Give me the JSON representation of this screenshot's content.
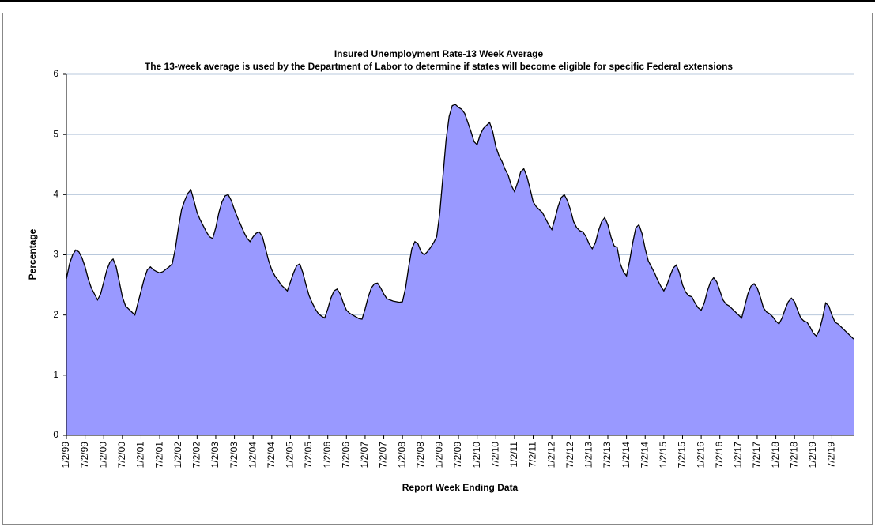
{
  "chart_data": {
    "type": "area",
    "title": "Insured Unemployment Rate-13 Week Average",
    "subtitle": "The 13-week average is used by the Department of Labor to determine if states will become eligible for specific Federal extensions",
    "x_label": "Report Week Ending Data",
    "y_label": "Percentage",
    "color": "#9999ff",
    "line_color": "#000000",
    "grid": true,
    "ylim": [
      0,
      6
    ],
    "yticks": [
      0,
      1,
      2,
      3,
      4,
      5,
      6
    ],
    "categories": [
      "1/2/99",
      null,
      null,
      null,
      null,
      null,
      "7/2/99",
      null,
      null,
      null,
      null,
      null,
      "1/2/00",
      null,
      null,
      null,
      null,
      null,
      "7/2/00",
      null,
      null,
      null,
      null,
      null,
      "1/2/01",
      null,
      null,
      null,
      null,
      null,
      "7/2/01",
      null,
      null,
      null,
      null,
      null,
      "1/2/02",
      null,
      null,
      null,
      null,
      null,
      "7/2/02",
      null,
      null,
      null,
      null,
      null,
      "1/2/03",
      null,
      null,
      null,
      null,
      null,
      "7/2/03",
      null,
      null,
      null,
      null,
      null,
      "1/2/04",
      null,
      null,
      null,
      null,
      null,
      "7/2/04",
      null,
      null,
      null,
      null,
      null,
      "1/2/05",
      null,
      null,
      null,
      null,
      null,
      "7/2/05",
      null,
      null,
      null,
      null,
      null,
      "1/2/06",
      null,
      null,
      null,
      null,
      null,
      "7/2/06",
      null,
      null,
      null,
      null,
      null,
      "1/2/07",
      null,
      null,
      null,
      null,
      null,
      "7/2/07",
      null,
      null,
      null,
      null,
      null,
      "1/2/08",
      null,
      null,
      null,
      null,
      null,
      "7/2/08",
      null,
      null,
      null,
      null,
      null,
      "1/2/09",
      null,
      null,
      null,
      null,
      null,
      "7/2/09",
      null,
      null,
      null,
      null,
      null,
      "1/2/10",
      null,
      null,
      null,
      null,
      null,
      "7/2/10",
      null,
      null,
      null,
      null,
      null,
      "1/2/11",
      null,
      null,
      null,
      null,
      null,
      "7/2/11",
      null,
      null,
      null,
      null,
      null,
      "1/2/12",
      null,
      null,
      null,
      null,
      null,
      "7/2/12",
      null,
      null,
      null,
      null,
      null,
      "1/2/13",
      null,
      null,
      null,
      null,
      null,
      "7/2/13",
      null,
      null,
      null,
      null,
      null,
      "1/2/14",
      null,
      null,
      null,
      null,
      null,
      "7/2/14",
      null,
      null,
      null,
      null,
      null,
      "1/2/15",
      null,
      null,
      null,
      null,
      null,
      "7/2/15",
      null,
      null,
      null,
      null,
      null,
      "1/2/16",
      null,
      null,
      null,
      null,
      null,
      "7/2/16",
      null,
      null,
      null,
      null,
      null,
      "1/2/17",
      null,
      null,
      null,
      null,
      null,
      "7/2/17",
      null,
      null,
      null,
      null,
      null,
      "1/2/18",
      null,
      null,
      null,
      null,
      null,
      "7/2/18",
      null,
      null,
      null,
      null,
      null,
      "1/2/19",
      null,
      null,
      null,
      null,
      null,
      "7/2/19",
      null,
      null,
      null,
      null,
      null,
      null,
      null
    ],
    "values": [
      2.6,
      2.85,
      3.0,
      3.08,
      3.05,
      2.95,
      2.8,
      2.6,
      2.45,
      2.35,
      2.25,
      2.35,
      2.55,
      2.75,
      2.88,
      2.93,
      2.8,
      2.55,
      2.3,
      2.15,
      2.1,
      2.05,
      2.0,
      2.2,
      2.4,
      2.6,
      2.75,
      2.8,
      2.75,
      2.72,
      2.7,
      2.72,
      2.76,
      2.8,
      2.85,
      3.1,
      3.45,
      3.75,
      3.9,
      4.02,
      4.08,
      3.9,
      3.7,
      3.58,
      3.48,
      3.38,
      3.3,
      3.27,
      3.45,
      3.7,
      3.88,
      3.98,
      4.0,
      3.9,
      3.75,
      3.62,
      3.5,
      3.38,
      3.28,
      3.22,
      3.3,
      3.36,
      3.38,
      3.3,
      3.1,
      2.9,
      2.75,
      2.65,
      2.58,
      2.5,
      2.45,
      2.4,
      2.55,
      2.7,
      2.82,
      2.85,
      2.7,
      2.5,
      2.32,
      2.2,
      2.1,
      2.02,
      1.98,
      1.95,
      2.1,
      2.28,
      2.4,
      2.43,
      2.35,
      2.2,
      2.08,
      2.03,
      2.0,
      1.97,
      1.94,
      1.93,
      2.1,
      2.3,
      2.45,
      2.52,
      2.53,
      2.45,
      2.35,
      2.27,
      2.25,
      2.23,
      2.22,
      2.21,
      2.22,
      2.45,
      2.8,
      3.1,
      3.22,
      3.18,
      3.05,
      3.0,
      3.05,
      3.12,
      3.2,
      3.3,
      3.7,
      4.3,
      4.9,
      5.3,
      5.48,
      5.5,
      5.45,
      5.42,
      5.35,
      5.2,
      5.05,
      4.88,
      4.83,
      5.0,
      5.1,
      5.15,
      5.2,
      5.05,
      4.8,
      4.65,
      4.55,
      4.42,
      4.32,
      4.15,
      4.05,
      4.2,
      4.38,
      4.43,
      4.3,
      4.1,
      3.88,
      3.8,
      3.75,
      3.7,
      3.6,
      3.5,
      3.42,
      3.6,
      3.8,
      3.95,
      4.0,
      3.9,
      3.75,
      3.55,
      3.45,
      3.4,
      3.38,
      3.3,
      3.18,
      3.1,
      3.2,
      3.4,
      3.55,
      3.62,
      3.5,
      3.3,
      3.15,
      3.12,
      2.85,
      2.72,
      2.65,
      2.9,
      3.2,
      3.45,
      3.5,
      3.35,
      3.1,
      2.9,
      2.8,
      2.7,
      2.58,
      2.48,
      2.4,
      2.5,
      2.65,
      2.78,
      2.83,
      2.7,
      2.5,
      2.38,
      2.32,
      2.3,
      2.2,
      2.12,
      2.08,
      2.2,
      2.4,
      2.55,
      2.62,
      2.55,
      2.4,
      2.25,
      2.18,
      2.15,
      2.1,
      2.05,
      2.0,
      1.95,
      2.15,
      2.35,
      2.48,
      2.52,
      2.45,
      2.3,
      2.12,
      2.05,
      2.02,
      1.97,
      1.9,
      1.85,
      1.95,
      2.1,
      2.22,
      2.28,
      2.22,
      2.08,
      1.95,
      1.9,
      1.88,
      1.8,
      1.7,
      1.65,
      1.75,
      1.95,
      2.2,
      2.15,
      2.0,
      1.88,
      1.85,
      1.8,
      1.75,
      1.7,
      1.65,
      1.6
    ]
  }
}
